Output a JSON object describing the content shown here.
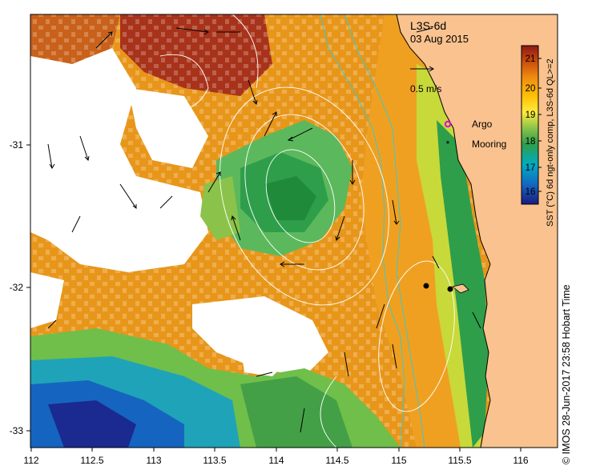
{
  "map": {
    "product": "L3S-6d",
    "date": "03 Aug 2015",
    "velocity_scale": "0.5 m/s",
    "x_axis_ticks": [
      "112",
      "112.5",
      "113",
      "113.5",
      "114",
      "114.5",
      "115",
      "115.5",
      "116"
    ],
    "y_axis_ticks": [
      "-31",
      "-32",
      "-33"
    ],
    "legend": {
      "argo": "Argo",
      "mooring": "Mooring"
    },
    "colorbar": {
      "label": "SST (°C) 6d ngt-only comp, L3S-6d QL>=2",
      "ticks": [
        "21",
        "20",
        "19",
        "18",
        "17",
        "16"
      ],
      "min": 15.5,
      "max": 21.5,
      "colors": [
        "#1a237e",
        "#1565c0",
        "#00acc1",
        "#43a047",
        "#8bc34a",
        "#ffeb3b",
        "#ffc107",
        "#ff9800",
        "#e65100",
        "#b71c1c"
      ]
    },
    "land_color": "#f9c28e",
    "credit": "© IMOS 28-Jun-2017 23:58 Hobart Time"
  }
}
